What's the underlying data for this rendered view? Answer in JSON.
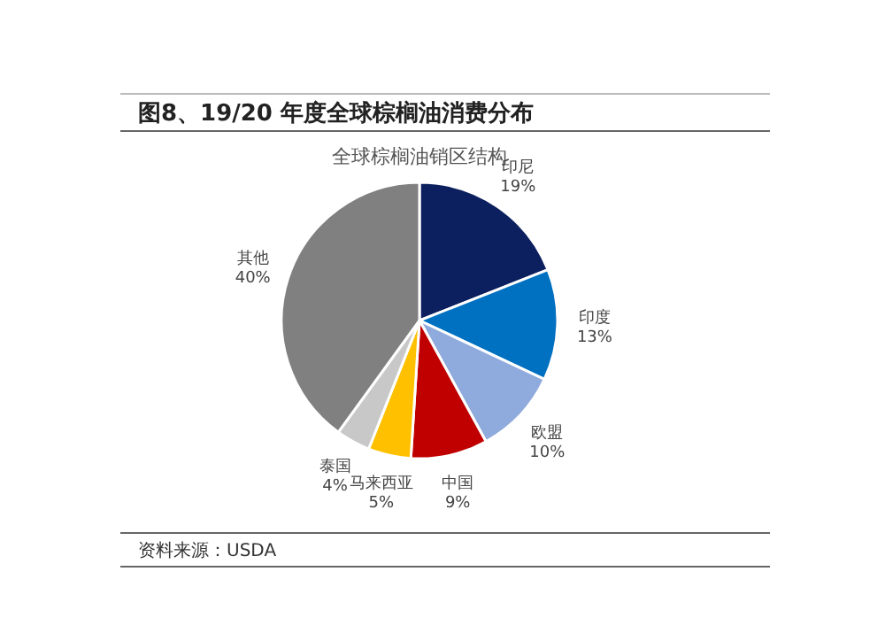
{
  "chart_data": {
    "type": "pie",
    "title": "图8、19/20 年度全球棕榈油消费分布",
    "subtitle": "全球棕榈油销区结构",
    "categories": [
      "印尼",
      "印度",
      "欧盟",
      "中国",
      "马来西亚",
      "泰国",
      "其他"
    ],
    "values": [
      19,
      13,
      10,
      9,
      5,
      4,
      40
    ],
    "value_labels": [
      "19%",
      "13%",
      "10%",
      "9%",
      "5%",
      "4%",
      "40%"
    ],
    "colors": [
      "#0c1f5e",
      "#0070c0",
      "#8faadc",
      "#c00000",
      "#ffc000",
      "#c8c8c8",
      "#808080"
    ],
    "annotations": [
      "资料来源：USDA"
    ]
  }
}
